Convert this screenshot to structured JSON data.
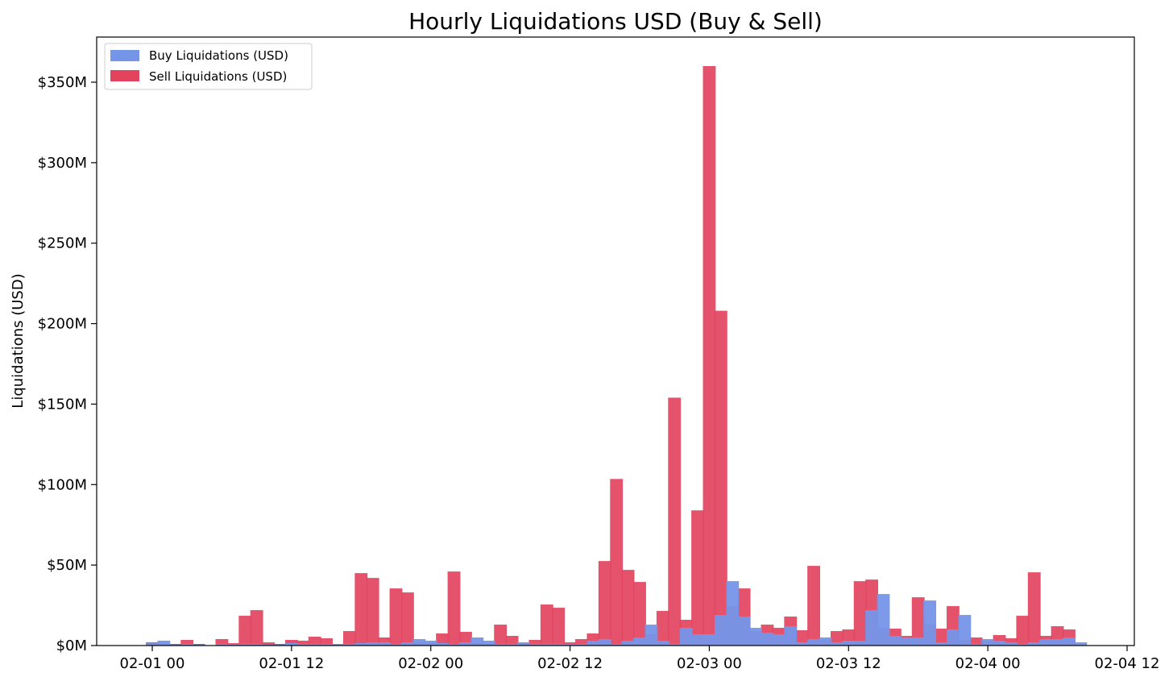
{
  "chart_data": {
    "type": "bar",
    "title": "Hourly Liquidations USD (Buy & Sell)",
    "xlabel": "",
    "ylabel": "Liquidations (USD)",
    "ylim": [
      0,
      375000000
    ],
    "x_ticks": [
      "02-01 00",
      "02-01 12",
      "02-02 00",
      "02-02 12",
      "02-03 00",
      "02-03 12",
      "02-04 00",
      "02-04 12"
    ],
    "y_ticks": [
      "$0M",
      "$50M",
      "$100M",
      "$150M",
      "$200M",
      "$250M",
      "$300M",
      "$350M"
    ],
    "y_tick_values": [
      0,
      50,
      100,
      150,
      200,
      250,
      300,
      350
    ],
    "grid": false,
    "legend": "top-left",
    "bar_width_hours": 1.1,
    "hours": [
      0,
      1,
      2,
      3,
      4,
      5,
      6,
      7,
      8,
      9,
      10,
      11,
      12,
      13,
      14,
      15,
      16,
      17,
      18,
      19,
      20,
      21,
      22,
      23,
      24,
      25,
      26,
      27,
      28,
      29,
      30,
      31,
      32,
      33,
      34,
      35,
      36,
      37,
      38,
      39,
      40,
      41,
      42,
      43,
      44,
      45,
      46,
      47,
      48,
      49,
      50,
      51,
      52,
      53,
      54,
      55,
      56,
      57,
      58,
      59,
      60,
      61,
      62,
      63,
      64,
      65,
      66,
      67,
      68,
      69,
      70,
      71,
      72,
      73,
      74,
      75,
      76,
      77,
      78,
      79,
      80
    ],
    "series": [
      {
        "name": "Buy Liquidations (USD)",
        "color": "#7595e8",
        "values": [
          1.5,
          3,
          0.5,
          1,
          0.5,
          0,
          1,
          1,
          1,
          1,
          0.5,
          0.5,
          1.5,
          1,
          1,
          1,
          1,
          1,
          1.5,
          2,
          2,
          1,
          2,
          4,
          3,
          1.5,
          1,
          2,
          5,
          3,
          1,
          1,
          2,
          1,
          1,
          1,
          1,
          1,
          3,
          4,
          1,
          3,
          5,
          13,
          3,
          1,
          11,
          7,
          7,
          19,
          40,
          18,
          11,
          8,
          7,
          12,
          2,
          4,
          5,
          2,
          3,
          3,
          22,
          32,
          6,
          5,
          5,
          28,
          2,
          10,
          19,
          1,
          4,
          3,
          2,
          1,
          2,
          4,
          4,
          5,
          2
        ]
      },
      {
        "name": "Sell Liquidations (USD)",
        "color": "#e2445e",
        "values": [
          2,
          1,
          1,
          3.5,
          1,
          0,
          4,
          1.5,
          18.5,
          22,
          2,
          1,
          3.5,
          3,
          5.5,
          4.5,
          0.5,
          9,
          45,
          42,
          5,
          35.5,
          33,
          2,
          1.5,
          7.5,
          46,
          8.5,
          1.5,
          1,
          13,
          6,
          1.5,
          3.5,
          25.5,
          23.5,
          2,
          4,
          7.5,
          52.5,
          103.5,
          47,
          39.5,
          7,
          21.5,
          154,
          16,
          84,
          360,
          208,
          24.5,
          35.5,
          9,
          13,
          11,
          18,
          9.5,
          49.5,
          3.5,
          9,
          10,
          40,
          41,
          11,
          10.5,
          6,
          30,
          13,
          10.5,
          24.5,
          3.5,
          5,
          3,
          6.5,
          4.5,
          18.5,
          45.5,
          6,
          12,
          10,
          0
        ]
      }
    ]
  }
}
